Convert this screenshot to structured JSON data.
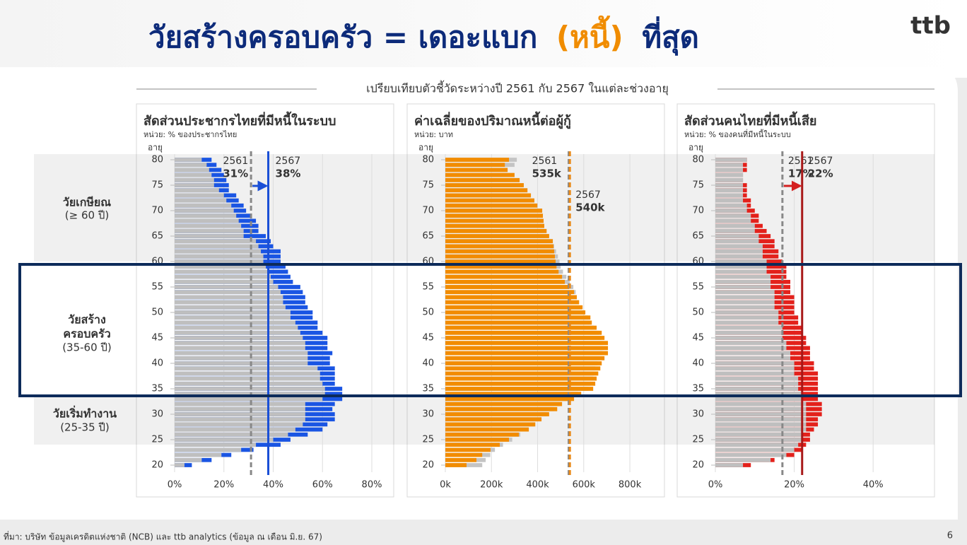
{
  "title": {
    "part1": "วัยสร้างครอบครัว = เดอะแบก",
    "highlight": "(หนี้)",
    "part2": "ที่สุด"
  },
  "logo": "ttb",
  "subtitle": "เปรียบเทียบตัวชี้วัดระหว่างปี 2561 กับ 2567 ในแต่ละช่วงอายุ",
  "age_groups": [
    {
      "lines": [
        "วัยเกษียณ"
      ],
      "range": "(≥ 60 ปี)"
    },
    {
      "lines": [
        "วัยสร้าง",
        "ครอบครัว"
      ],
      "range": "(35-60 ปี)"
    },
    {
      "lines": [
        "วัยเริ่มทำงาน"
      ],
      "range": "(25-35 ปี)"
    }
  ],
  "source": "ที่มา: บริษัท ข้อมูลเครดิตแห่งชาติ (NCB) และ ttb analytics (ข้อมูล ณ เดือน มิ.ย. 67)",
  "page_number": "6",
  "chart_data": [
    {
      "type": "bar",
      "orientation": "horizontal",
      "title": "สัดส่วนประชากรไทยที่มีหนี้ในระบบ",
      "title_color": "#1a4fd6",
      "unit": "หน่วย: % ของประชากรไทย",
      "ylabel": "อายุ",
      "ages": [
        20,
        21,
        22,
        23,
        24,
        25,
        26,
        27,
        28,
        29,
        30,
        31,
        32,
        33,
        34,
        35,
        36,
        37,
        38,
        39,
        40,
        41,
        42,
        43,
        44,
        45,
        46,
        47,
        48,
        49,
        50,
        51,
        52,
        53,
        54,
        55,
        56,
        57,
        58,
        59,
        60,
        61,
        62,
        63,
        64,
        65,
        66,
        67,
        68,
        69,
        70,
        71,
        72,
        73,
        74,
        75,
        76,
        77,
        78,
        79,
        80
      ],
      "ylim": [
        20,
        80
      ],
      "yticks": [
        20,
        25,
        30,
        35,
        40,
        45,
        50,
        55,
        60,
        65,
        70,
        75,
        80
      ],
      "xlim": [
        0,
        80
      ],
      "xticks": [
        {
          "value": 0,
          "label": "0%"
        },
        {
          "value": 20,
          "label": "20%"
        },
        {
          "value": 40,
          "label": "40%"
        },
        {
          "value": 60,
          "label": "60%"
        },
        {
          "value": 80,
          "label": "80%"
        }
      ],
      "grid": true,
      "front_series": 0,
      "series": [
        {
          "name": "2561",
          "color": "#bfbfbf",
          "line_color": "#888888",
          "line_style": "dashed",
          "average": 31,
          "average_label": "31%",
          "values": [
            4,
            11,
            19,
            27,
            33,
            40,
            46,
            49,
            52,
            53,
            53,
            53,
            53,
            60,
            61,
            61,
            60,
            59,
            59,
            58,
            54,
            54,
            54,
            53,
            53,
            52,
            51,
            50,
            49,
            47,
            47,
            45,
            44,
            44,
            43,
            42,
            40,
            39,
            38,
            37,
            36,
            36,
            35,
            34,
            33,
            28,
            28,
            27,
            26,
            25,
            24,
            23,
            21,
            20,
            18,
            16,
            16,
            15,
            14,
            13,
            11
          ]
        },
        {
          "name": "2567",
          "color": "#1a55e3",
          "line_color": "#1a4fd6",
          "line_style": "solid",
          "average": 38,
          "average_label": "38%",
          "values": [
            7,
            15,
            23,
            32,
            43,
            47,
            54,
            60,
            62,
            65,
            65,
            64,
            65,
            68,
            68,
            68,
            65,
            65,
            65,
            65,
            63,
            63,
            64,
            62,
            62,
            62,
            60,
            58,
            58,
            56,
            56,
            54,
            53,
            53,
            52,
            51,
            48,
            47,
            46,
            45,
            43,
            43,
            43,
            40,
            39,
            37,
            34,
            34,
            33,
            31,
            29,
            28,
            26,
            25,
            22,
            22,
            21,
            20,
            19,
            17,
            15
          ]
        }
      ]
    },
    {
      "type": "bar",
      "orientation": "horizontal",
      "title": "ค่าเฉลี่ยของปริมาณหนี้ต่อผู้กู้",
      "title_color": "#f08c00",
      "unit": "หน่วย: บาท",
      "ylabel": "อายุ",
      "ages": [
        20,
        21,
        22,
        23,
        24,
        25,
        26,
        27,
        28,
        29,
        30,
        31,
        32,
        33,
        34,
        35,
        36,
        37,
        38,
        39,
        40,
        41,
        42,
        43,
        44,
        45,
        46,
        47,
        48,
        49,
        50,
        51,
        52,
        53,
        54,
        55,
        56,
        57,
        58,
        59,
        60,
        61,
        62,
        63,
        64,
        65,
        66,
        67,
        68,
        69,
        70,
        71,
        72,
        73,
        74,
        75,
        76,
        77,
        78,
        79,
        80
      ],
      "ylim": [
        20,
        80
      ],
      "yticks": [
        20,
        25,
        30,
        35,
        40,
        45,
        50,
        55,
        60,
        65,
        70,
        75,
        80
      ],
      "xlim": [
        0,
        855000
      ],
      "xticks": [
        {
          "value": 0,
          "label": "0k"
        },
        {
          "value": 200000,
          "label": "200k"
        },
        {
          "value": 400000,
          "label": "400k"
        },
        {
          "value": 600000,
          "label": "600k"
        },
        {
          "value": 800000,
          "label": "800k"
        }
      ],
      "grid": true,
      "front_series": 1,
      "series": [
        {
          "name": "2561",
          "color": "#c4c4c4",
          "line_color": "#888888",
          "line_style": "dashed",
          "average": 535000,
          "average_label": "535k",
          "values": [
            160000,
            175000,
            195000,
            215000,
            250000,
            290000,
            325000,
            360000,
            385000,
            410000,
            440000,
            470000,
            495000,
            545000,
            575000,
            620000,
            630000,
            640000,
            645000,
            650000,
            660000,
            670000,
            680000,
            685000,
            685000,
            675000,
            665000,
            645000,
            625000,
            620000,
            600000,
            590000,
            578000,
            570000,
            565000,
            555000,
            540000,
            525000,
            510000,
            500000,
            495000,
            488000,
            480000,
            472000,
            466000,
            450000,
            439000,
            429000,
            426000,
            423000,
            420000,
            399000,
            386000,
            371000,
            356000,
            340000,
            322000,
            300000,
            270000,
            300000,
            310000
          ]
        },
        {
          "name": "2567",
          "color": "#f28c00",
          "line_color": "#e98a1a",
          "line_style": "dashed",
          "average": 540000,
          "average_label": "540k",
          "values": [
            92000,
            135000,
            160000,
            196000,
            236000,
            276000,
            319000,
            362000,
            390000,
            417000,
            450000,
            485000,
            506000,
            558000,
            589000,
            641000,
            650000,
            656000,
            663000,
            672000,
            678000,
            690000,
            705000,
            705000,
            705000,
            690000,
            678000,
            656000,
            635000,
            629000,
            607000,
            595000,
            580000,
            570000,
            558000,
            537000,
            518000,
            506000,
            491000,
            482000,
            478000,
            475000,
            472000,
            469000,
            466000,
            450000,
            439000,
            429000,
            426000,
            423000,
            420000,
            399000,
            386000,
            371000,
            356000,
            340000,
            322000,
            300000,
            270000,
            258000,
            276000
          ]
        }
      ]
    },
    {
      "type": "bar",
      "orientation": "horizontal",
      "title": "สัดส่วนคนไทยที่มีหนี้เสีย",
      "title_color": "#e0201c",
      "unit": "หน่วย: % ของคนที่มีหนี้ในระบบ",
      "ylabel": "อายุ",
      "ages": [
        20,
        21,
        22,
        23,
        24,
        25,
        26,
        27,
        28,
        29,
        30,
        31,
        32,
        33,
        34,
        35,
        36,
        37,
        38,
        39,
        40,
        41,
        42,
        43,
        44,
        45,
        46,
        47,
        48,
        49,
        50,
        51,
        52,
        53,
        54,
        55,
        56,
        57,
        58,
        59,
        60,
        61,
        62,
        63,
        64,
        65,
        66,
        67,
        68,
        69,
        70,
        71,
        72,
        73,
        74,
        75,
        76,
        77,
        78,
        79,
        80
      ],
      "ylim": [
        20,
        80
      ],
      "yticks": [
        20,
        25,
        30,
        35,
        40,
        45,
        50,
        55,
        60,
        65,
        70,
        75,
        80
      ],
      "xlim": [
        0,
        50
      ],
      "xticks": [
        {
          "value": 0,
          "label": "0%"
        },
        {
          "value": 20,
          "label": "20%"
        },
        {
          "value": 40,
          "label": "40%"
        }
      ],
      "grid": true,
      "front_series": 0,
      "series": [
        {
          "name": "2561",
          "color": "#bfbfbf",
          "line_color": "#888888",
          "line_style": "dashed",
          "average": 17,
          "average_label": "17%",
          "values": [
            7,
            14,
            18,
            20,
            21,
            22,
            22,
            23,
            23,
            23,
            23,
            23,
            23,
            22,
            22,
            21,
            21,
            21,
            20,
            20,
            20,
            19,
            19,
            18,
            18,
            17,
            17,
            17,
            16,
            16,
            16,
            15,
            15,
            15,
            15,
            14,
            14,
            14,
            13,
            13,
            13,
            12,
            12,
            12,
            11,
            11,
            10,
            10,
            9,
            9,
            8,
            8,
            7,
            7,
            7,
            7,
            7,
            7,
            7,
            7,
            8
          ]
        },
        {
          "name": "2567",
          "color": "#e3211b",
          "line_color": "#a81818",
          "line_style": "solid",
          "average": 22,
          "average_label": "22%",
          "values": [
            9,
            15,
            20,
            22,
            23,
            24,
            24,
            25,
            26,
            26,
            27,
            27,
            27,
            26,
            26,
            26,
            26,
            26,
            26,
            25,
            25,
            24,
            24,
            24,
            23,
            23,
            22,
            22,
            21,
            21,
            20,
            20,
            20,
            20,
            19,
            19,
            19,
            18,
            18,
            18,
            17,
            16,
            16,
            15,
            15,
            14,
            13,
            12,
            11,
            11,
            10,
            9,
            9,
            8,
            8,
            8,
            7,
            7,
            8,
            8,
            8
          ]
        }
      ]
    }
  ]
}
